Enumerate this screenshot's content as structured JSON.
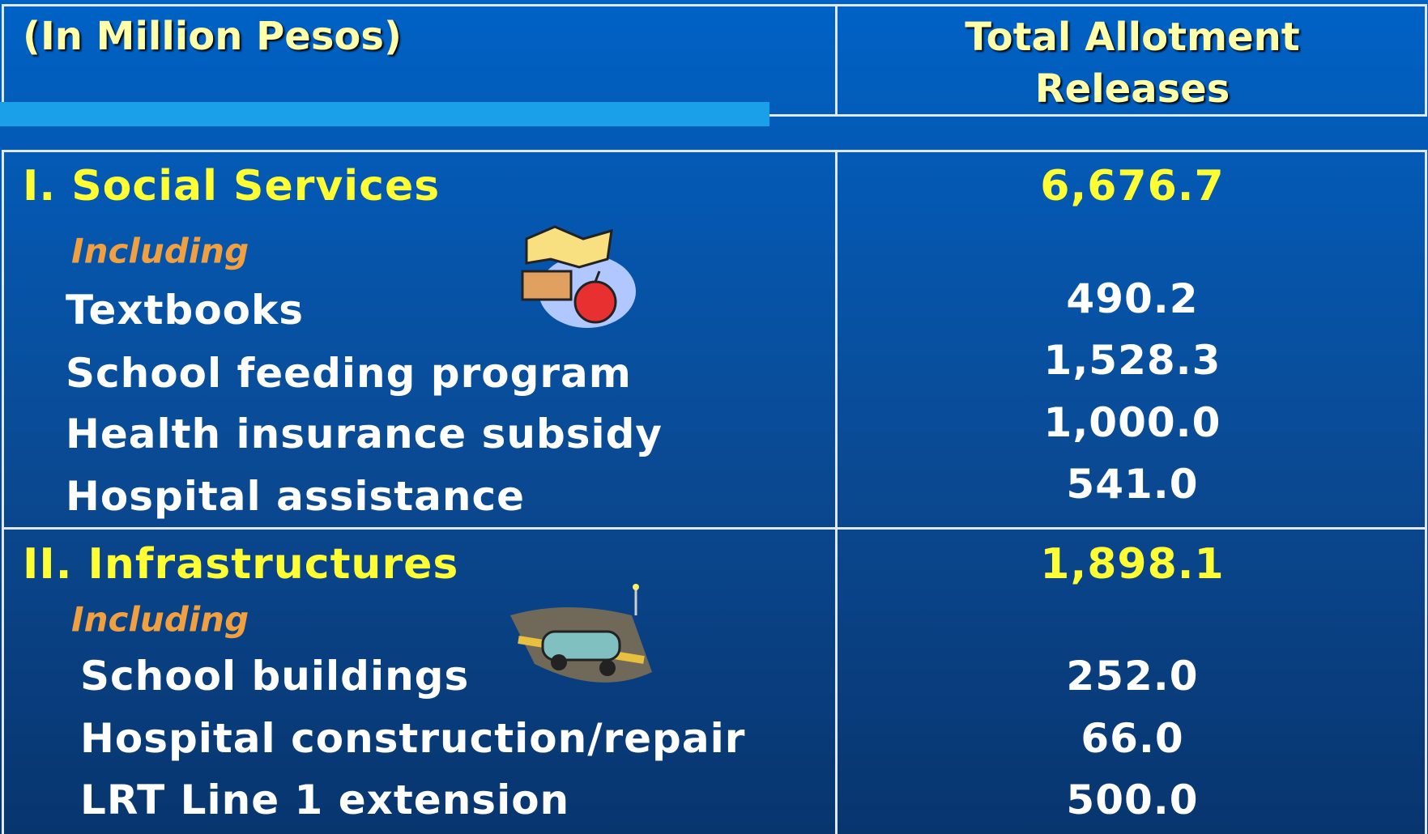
{
  "header": {
    "unit": "(In Million Pesos)",
    "column": "Total Allotment Releases"
  },
  "sections": [
    {
      "title": "I. Social Services",
      "total": "6,676.7",
      "including": "Including",
      "items": [
        {
          "label": "Textbooks",
          "value": "490.2"
        },
        {
          "label": "School feeding program",
          "value": "1,528.3"
        },
        {
          "label": "Health insurance subsidy",
          "value": "1,000.0"
        },
        {
          "label": "Hospital assistance",
          "value": "541.0"
        }
      ]
    },
    {
      "title": "II. Infrastructures",
      "total": "1,898.1",
      "including": "Including",
      "items": [
        {
          "label": "School buildings",
          "value": "252.0"
        },
        {
          "label": "Hospital construction/repair",
          "value": "66.0"
        },
        {
          "label": "LRT Line 1 extension",
          "value": "500.0"
        }
      ]
    }
  ]
}
